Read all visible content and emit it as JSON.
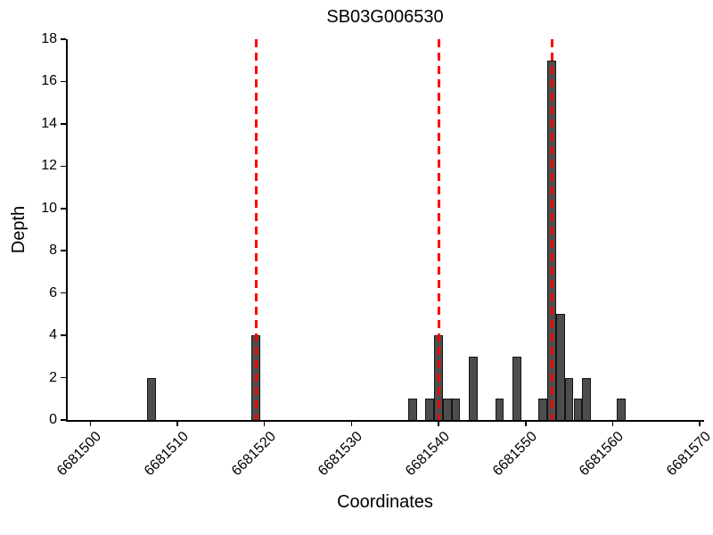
{
  "chart_data": {
    "type": "bar",
    "title": "SB03G006530",
    "xlabel": "Coordinates",
    "ylabel": "Depth",
    "xlim": [
      6681497.4,
      6681570.5
    ],
    "ylim": [
      0,
      18
    ],
    "xticks": [
      6681500,
      6681510,
      6681520,
      6681530,
      6681540,
      6681550,
      6681560,
      6681570
    ],
    "yticks": [
      0,
      2,
      4,
      6,
      8,
      10,
      12,
      14,
      16,
      18
    ],
    "bar_width": 1,
    "grid": false,
    "legend": "none",
    "bars": [
      {
        "x": 6681507,
        "depth": 2
      },
      {
        "x": 6681519,
        "depth": 4
      },
      {
        "x": 6681537,
        "depth": 1
      },
      {
        "x": 6681539,
        "depth": 1
      },
      {
        "x": 6681540,
        "depth": 4
      },
      {
        "x": 6681541,
        "depth": 1
      },
      {
        "x": 6681542,
        "depth": 1
      },
      {
        "x": 6681544,
        "depth": 3
      },
      {
        "x": 6681547,
        "depth": 1
      },
      {
        "x": 6681549,
        "depth": 3
      },
      {
        "x": 6681552,
        "depth": 1
      },
      {
        "x": 6681553,
        "depth": 17
      },
      {
        "x": 6681554,
        "depth": 5
      },
      {
        "x": 6681555,
        "depth": 2
      },
      {
        "x": 6681556,
        "depth": 1
      },
      {
        "x": 6681557,
        "depth": 2
      },
      {
        "x": 6681561,
        "depth": 1
      }
    ],
    "vlines": {
      "positions": [
        6681519,
        6681540,
        6681553
      ],
      "style": "dashed",
      "color": "#ff0000"
    },
    "colors": {
      "bar_fill": "#4d4d4d",
      "bar_edge": "#141414",
      "vline": "#ff0000",
      "axis": "#000000",
      "text": "#000000",
      "background": "#ffffff"
    }
  }
}
